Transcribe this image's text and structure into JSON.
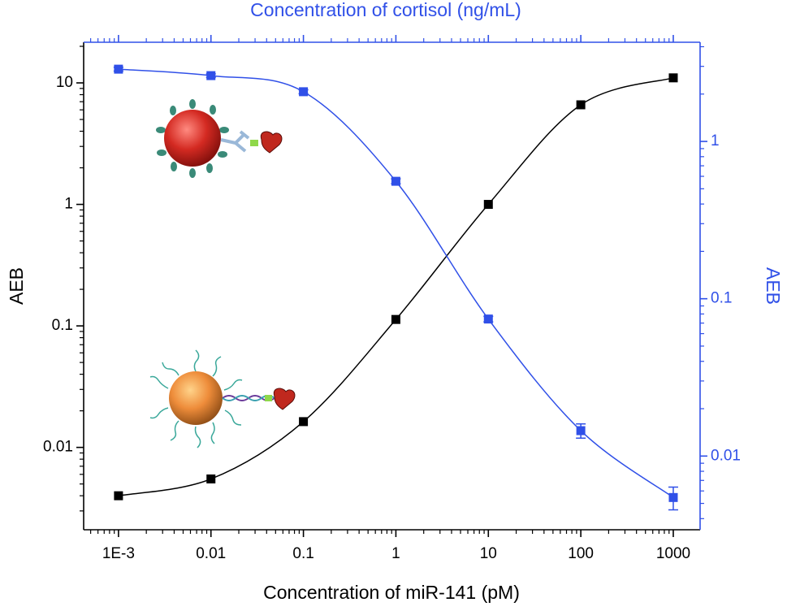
{
  "chart_data": {
    "type": "scatter",
    "title": "Concentration of cortisol (ng/mL)",
    "xlabel": "Concentration of miR-141 (pM)",
    "ylabel": "AEB",
    "y2label": "AEB",
    "xscale": "log",
    "yscale": "log",
    "y2scale": "log",
    "x": [
      0.001,
      0.01,
      0.1,
      1,
      10,
      100,
      1000
    ],
    "series": [
      {
        "color": "#000000",
        "values": [
          0.004,
          0.0055,
          0.0163,
          0.113,
          1,
          6.6,
          11
        ]
      },
      {
        "color": "#3050e8",
        "axis": "y2",
        "values": [
          2.88,
          2.62,
          2.07,
          0.558,
          0.0743,
          0.0145,
          0.00545
        ],
        "errors": [
          0.08,
          0.07,
          0.06,
          0.02,
          0.003,
          0.0015,
          0.0009
        ]
      }
    ],
    "xlim": [
      0.00042,
      1950
    ],
    "ylim": [
      0.0021,
      21.6
    ],
    "y2lim": [
      0.0034,
      4.27
    ],
    "xticks": [
      {
        "value": 0.001,
        "label": "1E-3"
      },
      0.01,
      0.1,
      1,
      10,
      100,
      1000
    ],
    "yticks": [
      0.01,
      0.1,
      1,
      10
    ],
    "y2ticks": [
      0.01,
      0.1,
      1
    ]
  }
}
